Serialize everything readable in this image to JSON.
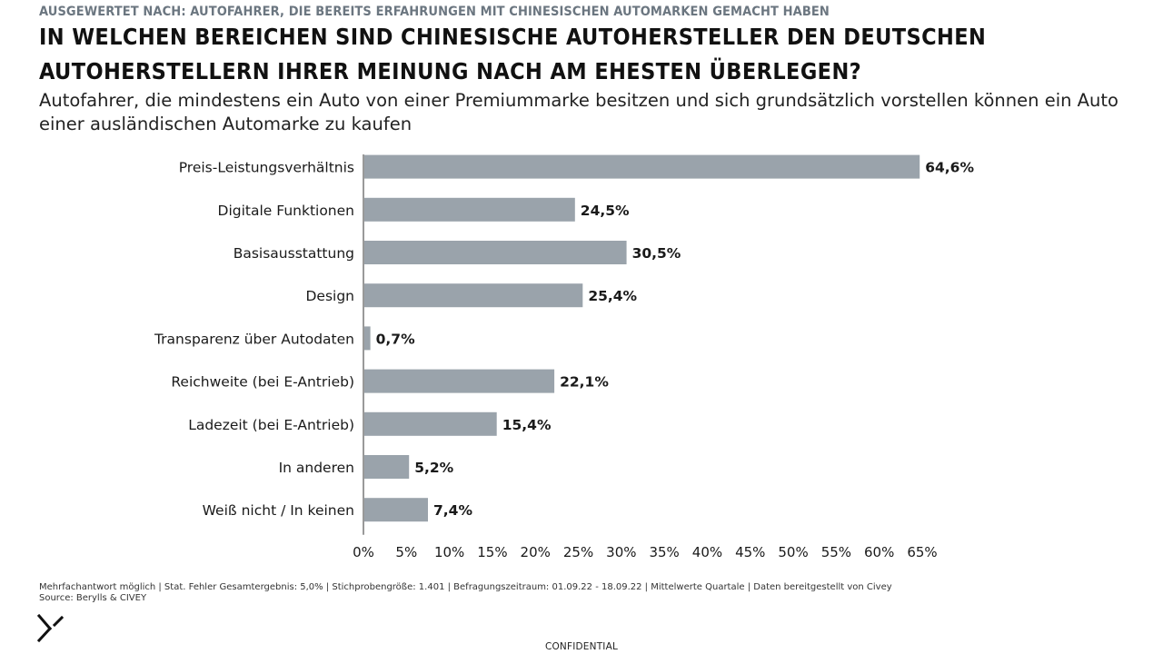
{
  "header": {
    "overline": "AUSGEWERTET NACH: AUTOFAHRER, DIE BEREITS ERFAHRUNGEN MIT CHINESISCHEN AUTOMARKEN GEMACHT HABEN",
    "title": "IN WELCHEN BEREICHEN SIND CHINESISCHE AUTOHERSTELLER DEN DEUTSCHEN AUTOHERSTELLERN IHRER MEINUNG NACH AM EHESTEN ÜBERLEGEN?",
    "subtitle": "Autofahrer, die mindestens ein Auto von einer Premiummarke besitzen und sich grundsätzlich vorstellen können ein Auto einer ausländischen Automarke zu kaufen"
  },
  "chart_data": {
    "type": "bar",
    "orientation": "horizontal",
    "categories": [
      "Preis-Leistungsverhältnis",
      "Digitale Funktionen",
      "Basisausstattung",
      "Design",
      "Transparenz über Autodaten",
      "Reichweite (bei E-Antrieb)",
      "Ladezeit (bei E-Antrieb)",
      "In anderen",
      "Weiß nicht / In keinen"
    ],
    "values": [
      64.6,
      24.5,
      30.5,
      25.4,
      0.7,
      22.1,
      15.4,
      5.2,
      7.4
    ],
    "value_labels": [
      "64,6%",
      "24,5%",
      "30,5%",
      "25,4%",
      "0,7%",
      "22,1%",
      "15,4%",
      "5,2%",
      "7,4%"
    ],
    "xlim": [
      0,
      65
    ],
    "x_ticks": [
      "0%",
      "5%",
      "10%",
      "15%",
      "20%",
      "25%",
      "30%",
      "35%",
      "40%",
      "45%",
      "50%",
      "55%",
      "60%",
      "65%"
    ],
    "grid": false,
    "colors": {
      "bar": "#9aa3ab",
      "axis": "#333333",
      "text": "#1a1a1a"
    }
  },
  "footer": {
    "note": "Mehrfachantwort möglich | Stat. Fehler Gesamtergebnis: 5,0% | Stichprobengröße: 1.401 | Befragungszeitraum: 01.09.22 - 18.09.22 | Mittelwerte Quartale | Daten bereitgestellt von Civey",
    "source": "Source: Berylls & CIVEY",
    "confidential": "CONFIDENTIAL"
  },
  "logo": {
    "icon": "berylls-logo-icon"
  }
}
